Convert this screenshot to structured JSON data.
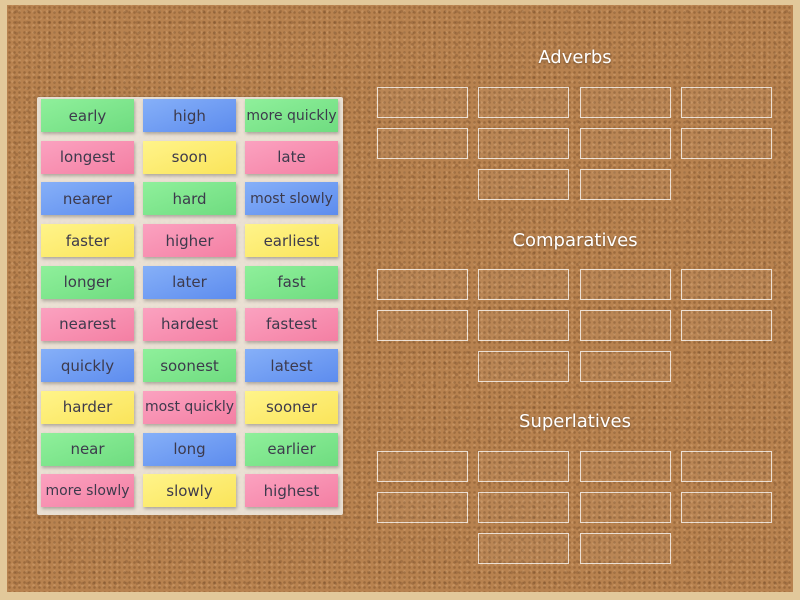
{
  "tiles": [
    {
      "text": "early",
      "color": "#7ee890"
    },
    {
      "text": "high",
      "color": "#749ff3"
    },
    {
      "text": "more quickly",
      "color": "#7ee890"
    },
    {
      "text": "longest",
      "color": "#f890b2"
    },
    {
      "text": "soon",
      "color": "#fbea6f"
    },
    {
      "text": "late",
      "color": "#f890b2"
    },
    {
      "text": "nearer",
      "color": "#749ff3"
    },
    {
      "text": "hard",
      "color": "#7ee890"
    },
    {
      "text": "most slowly",
      "color": "#749ff3"
    },
    {
      "text": "faster",
      "color": "#fbea6f"
    },
    {
      "text": "higher",
      "color": "#f890b2"
    },
    {
      "text": "earliest",
      "color": "#fbea6f"
    },
    {
      "text": "longer",
      "color": "#7ee890"
    },
    {
      "text": "later",
      "color": "#749ff3"
    },
    {
      "text": "fast",
      "color": "#7ee890"
    },
    {
      "text": "nearest",
      "color": "#f890b2"
    },
    {
      "text": "hardest",
      "color": "#f890b2"
    },
    {
      "text": "fastest",
      "color": "#f890b2"
    },
    {
      "text": "quickly",
      "color": "#749ff3"
    },
    {
      "text": "soonest",
      "color": "#7ee890"
    },
    {
      "text": "latest",
      "color": "#749ff3"
    },
    {
      "text": "harder",
      "color": "#fbea6f"
    },
    {
      "text": "most quickly",
      "color": "#f890b2"
    },
    {
      "text": "sooner",
      "color": "#fbea6f"
    },
    {
      "text": "near",
      "color": "#7ee890"
    },
    {
      "text": "long",
      "color": "#749ff3"
    },
    {
      "text": "earlier",
      "color": "#7ee890"
    },
    {
      "text": "more slowly",
      "color": "#f890b2"
    },
    {
      "text": "slowly",
      "color": "#fbea6f"
    },
    {
      "text": "highest",
      "color": "#f890b2"
    }
  ],
  "groups": [
    {
      "title": "Adverbs",
      "slots": 10
    },
    {
      "title": "Comparatives",
      "slots": 10
    },
    {
      "title": "Superlatives",
      "slots": 10
    }
  ],
  "colors": {
    "board": "#b8824f",
    "frame": "#e2c89a",
    "tray": "#eee8de",
    "heading_text": "#ffffff",
    "tile_text": "#3d3a4c"
  }
}
